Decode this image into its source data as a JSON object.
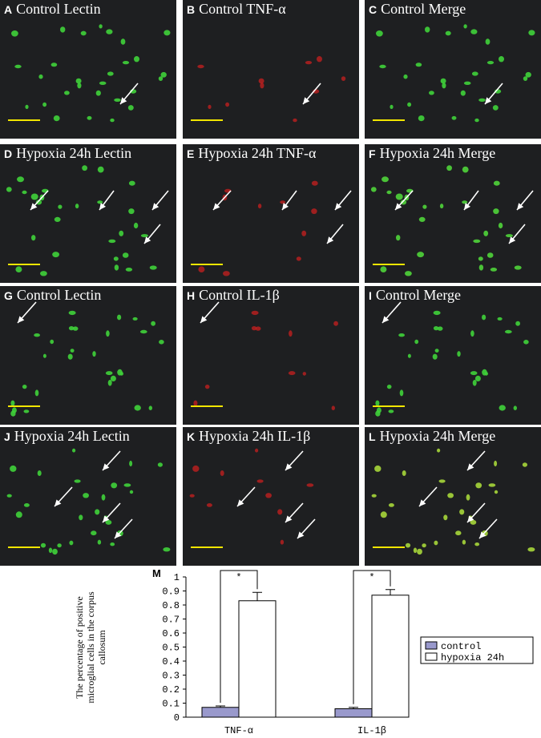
{
  "panels": [
    {
      "letter": "A",
      "title": "Control Lectin",
      "color": "#3fd23a"
    },
    {
      "letter": "B",
      "title": "Control TNF-α",
      "color": "#d42020"
    },
    {
      "letter": "C",
      "title": "Control Merge",
      "color": "#3fd23a"
    },
    {
      "letter": "D",
      "title": "Hypoxia 24h Lectin",
      "color": "#3fd23a"
    },
    {
      "letter": "E",
      "title": "Hypoxia 24h TNF-α",
      "color": "#d42020"
    },
    {
      "letter": "F",
      "title": "Hypoxia 24h Merge",
      "color": "#4fd43a"
    },
    {
      "letter": "G",
      "title": "Control Lectin",
      "color": "#3fd23a"
    },
    {
      "letter": "H",
      "title": "Control IL-1β",
      "color": "#d42020"
    },
    {
      "letter": "I",
      "title": "Control Merge",
      "color": "#3fd23a"
    },
    {
      "letter": "J",
      "title": "Hypoxia 24h Lectin",
      "color": "#3fd23a"
    },
    {
      "letter": "K",
      "title": "Hypoxia 24h IL-1β",
      "color": "#d42020"
    },
    {
      "letter": "L",
      "title": "Hypoxia 24h Merge",
      "color": "#a6d63a"
    }
  ],
  "chart_data": {
    "type": "bar",
    "panel_letter": "M",
    "categories": [
      "TNF-α",
      "IL-1β"
    ],
    "series": [
      {
        "name": "control",
        "values": [
          0.07,
          0.06
        ],
        "errors": [
          0.01,
          0.01
        ],
        "color": "#9999cc"
      },
      {
        "name": "hypoxia 24h",
        "values": [
          0.83,
          0.87
        ],
        "errors": [
          0.06,
          0.04
        ],
        "color": "#ffffff"
      }
    ],
    "ylabel_line1": "The percentage of positive",
    "ylabel_line2": "microglial cells in the corpus",
    "ylabel_line3": "callosum",
    "ylim": [
      0,
      1
    ],
    "yticks": [
      "0",
      "0.1",
      "0.2",
      "0.3",
      "0.4",
      "0.5",
      "0.6",
      "0.7",
      "0.8",
      "0.9",
      "1"
    ],
    "significance": "*",
    "legend_position": "right"
  }
}
